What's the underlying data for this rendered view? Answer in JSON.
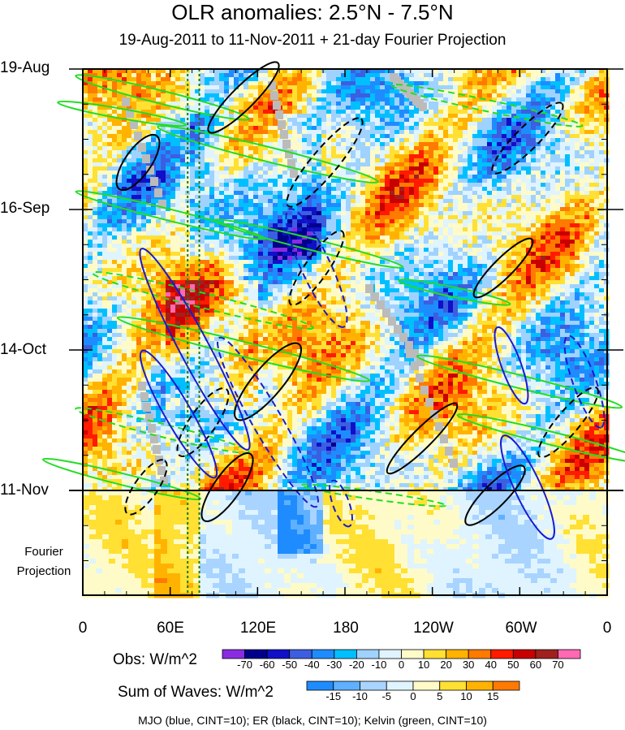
{
  "chart_data": {
    "type": "heatmap",
    "title": "OLR anomalies: 2.5°N - 7.5°N",
    "subtitle": "19-Aug-2011 to 11-Nov-2011 + 21-day Fourier Projection",
    "y_ticks": [
      "19-Aug",
      "16-Sep",
      "14-Oct",
      "11-Nov"
    ],
    "projection_label": "Fourier Projection",
    "x_ticks": [
      "0",
      "60E",
      "120E",
      "180",
      "120W",
      "60W",
      "0"
    ],
    "obs_colorbar": {
      "label": "Obs: W/m^2",
      "levels": [
        -70,
        -60,
        -50,
        -40,
        -30,
        -20,
        -10,
        0,
        10,
        20,
        30,
        40,
        50,
        60,
        70
      ],
      "colors": [
        "#8a2be2",
        "#00008b",
        "#1010c8",
        "#3c5ee0",
        "#1e8cff",
        "#00bfff",
        "#9fd2ff",
        "#dff4ff",
        "#fffbc8",
        "#ffe033",
        "#ffb300",
        "#ff7a00",
        "#ff1a00",
        "#c80000",
        "#a02020",
        "#ff69b4"
      ]
    },
    "waves_colorbar": {
      "label": "Sum of Waves: W/m^2",
      "levels": [
        -15,
        -10,
        -5,
        0,
        5,
        10,
        15
      ],
      "colors": [
        "#1e8cff",
        "#5fb0ff",
        "#a8d4ff",
        "#dff4ff",
        "#fffbc8",
        "#ffe033",
        "#ffb300",
        "#ff7a00"
      ]
    },
    "contours": [
      {
        "name": "MJO",
        "color": "#1a1ad0",
        "cint": 10
      },
      {
        "name": "ER",
        "color": "#000000",
        "cint": 10
      },
      {
        "name": "Kelvin",
        "color": "#22dd22",
        "cint": 10
      }
    ],
    "legend_text": "MJO (blue, CINT=10); ER (black, CINT=10); Kelvin (green, CINT=10)",
    "missing_color": "#bbbbbb",
    "reference_lines_lon": [
      72,
      80
    ]
  }
}
